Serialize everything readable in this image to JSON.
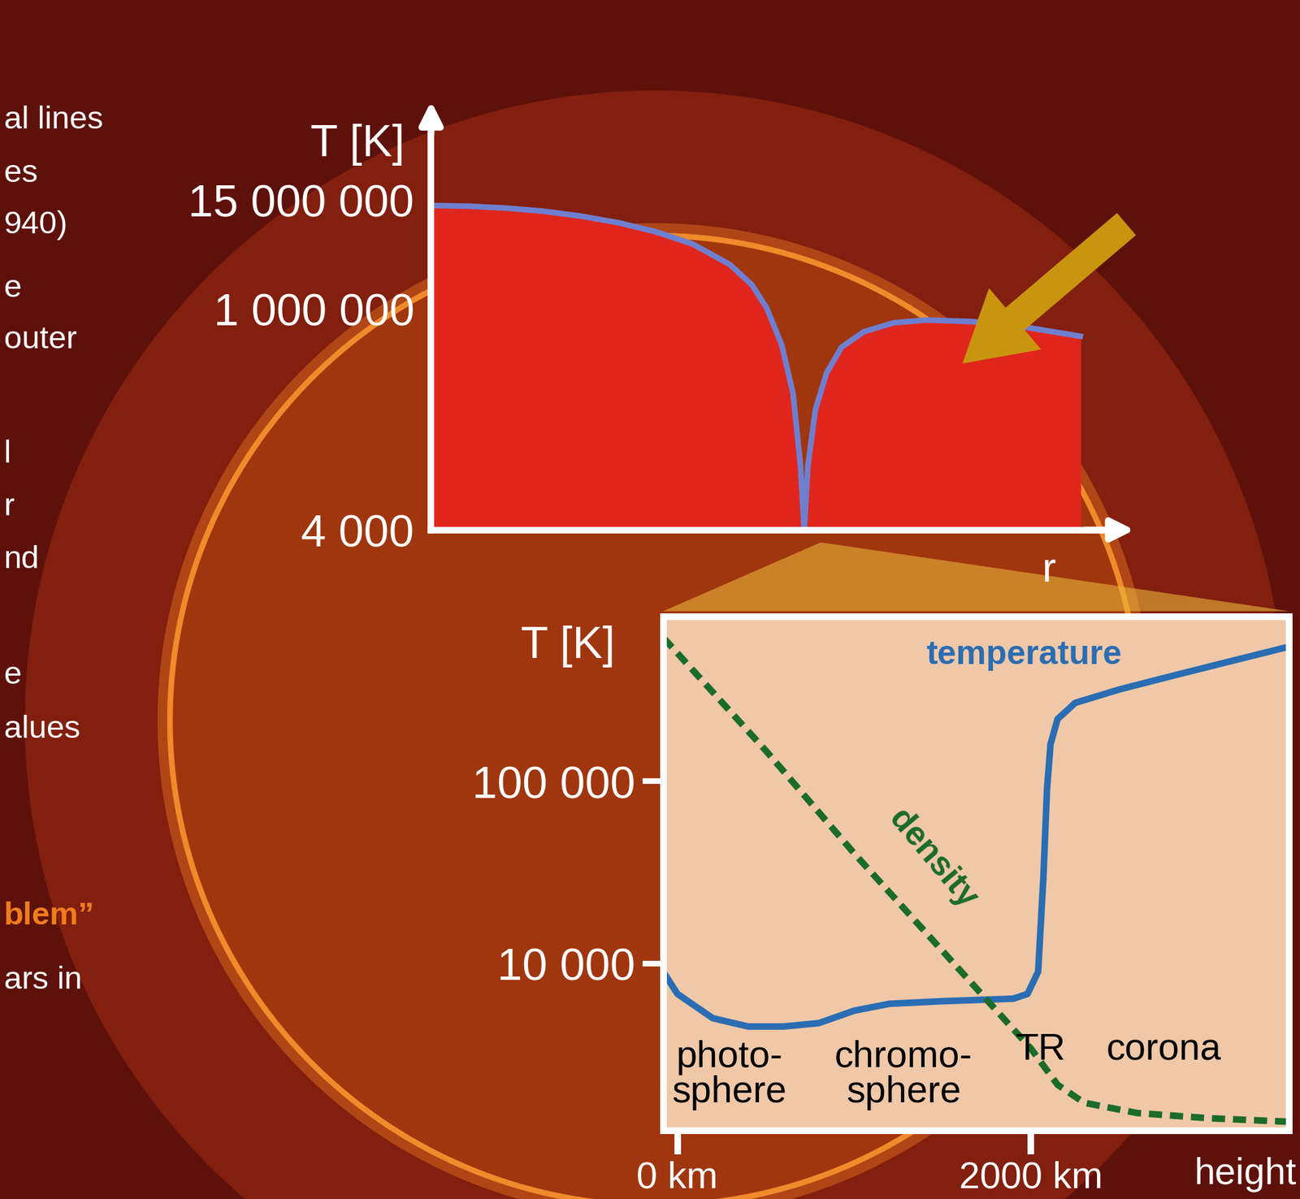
{
  "chart_data": [
    {
      "type": "line",
      "y_label": "T [K]",
      "x_label": "r",
      "x": [
        0,
        0.1,
        0.2,
        0.3,
        0.4,
        0.5,
        0.6,
        0.7,
        0.8,
        0.86,
        0.9,
        0.94,
        0.97,
        0.99,
        1.0,
        1.01,
        1.03,
        1.06,
        1.1,
        1.16,
        1.24,
        1.33,
        1.45,
        1.6,
        1.74
      ],
      "values": [
        13000000,
        12800000,
        12200000,
        11300000,
        10000000,
        8500000,
        6800000,
        5000000,
        3000000,
        1800000,
        1000000,
        400000,
        120000,
        20000,
        4000,
        20000,
        80000,
        200000,
        380000,
        560000,
        700000,
        750000,
        720000,
        620000,
        500000
      ],
      "color": "#6f7fd0",
      "log": "y",
      "xlim": [
        0,
        1.8
      ],
      "ylim": [
        4000,
        100000000
      ],
      "yticks": [
        {
          "value": 4000,
          "label": "4 000"
        },
        {
          "value": 1000000,
          "label": "1 000 000"
        },
        {
          "value": 15000000,
          "label": "15 000 000"
        }
      ],
      "tick_labels": "y"
    },
    {
      "type": "line",
      "y_label": "T [K]",
      "x_label": "height",
      "series": [
        {
          "name": "temperature",
          "color": "#2a6db3",
          "x": [
            -80,
            0,
            200,
            400,
            600,
            800,
            1000,
            1200,
            1500,
            1900,
            1980,
            2040,
            2070,
            2090,
            2110,
            2150,
            2250,
            2500,
            2800,
            3100,
            3460
          ],
          "values": [
            9000,
            6800,
            5000,
            4500,
            4500,
            4700,
            5500,
            6000,
            6200,
            6400,
            6800,
            9000,
            30000,
            90000,
            160000,
            220000,
            270000,
            320000,
            380000,
            450000,
            550000
          ]
        },
        {
          "name": "density",
          "color": "#1b6b2a",
          "line_style": "dashed",
          "axis": "y2",
          "x": [
            -80,
            500,
            1000,
            1500,
            2000,
            2150,
            2300,
            2600,
            3000,
            3460
          ],
          "values": [
            0.96,
            0.74,
            0.54,
            0.35,
            0.16,
            0.09,
            0.055,
            0.035,
            0.025,
            0.018
          ]
        }
      ],
      "log": "y",
      "xlim": [
        -80,
        3460
      ],
      "ylim": [
        1200,
        800000
      ],
      "xticks": [
        {
          "value": 0,
          "label": "0 km"
        },
        {
          "value": 2000,
          "label": "2000 km"
        }
      ],
      "yticks": [
        {
          "value": 10000,
          "label": "10 000"
        },
        {
          "value": 100000,
          "label": "100 000"
        }
      ],
      "y2lim": [
        0,
        1
      ],
      "y2ticks": [],
      "annotations": [
        "photo-\nsphere",
        "chromo-\nsphere",
        "TR",
        "corona"
      ]
    }
  ],
  "side_text": [
    "al lines",
    "es",
    "940)",
    "e",
    "outer",
    "l",
    "r",
    "nd",
    "e",
    "alues",
    {
      "text": "blem”",
      "color": "#f07d1a"
    },
    "ars in"
  ]
}
